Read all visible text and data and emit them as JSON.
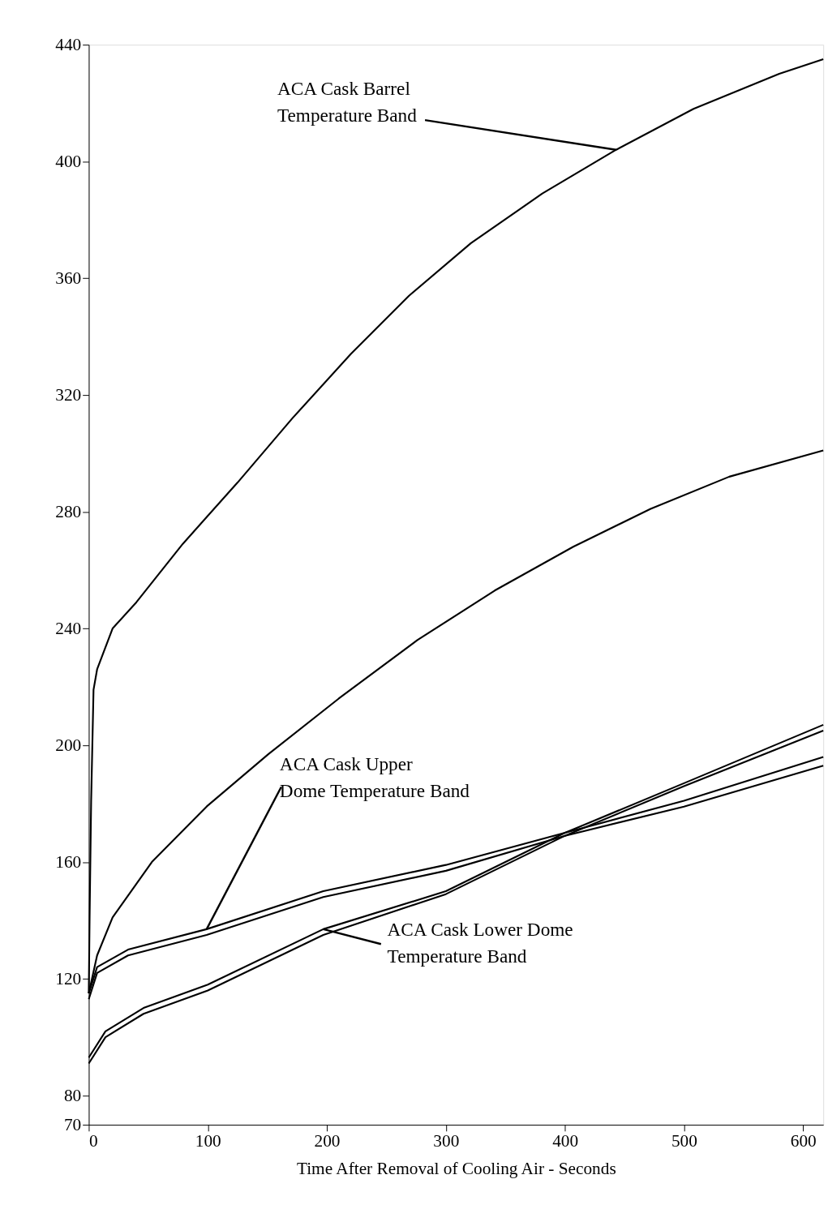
{
  "chart_data": {
    "type": "line",
    "xlabel": "Time After Removal of Cooling Air - Seconds",
    "xlim": [
      0,
      617
    ],
    "ylim": [
      70,
      440
    ],
    "xticks": [
      0,
      100,
      200,
      300,
      400,
      500,
      600
    ],
    "yticks": [
      70,
      80,
      120,
      160,
      200,
      240,
      280,
      320,
      360,
      400,
      440
    ],
    "grid": false,
    "marker": "none",
    "line_style": "solid",
    "series": [
      {
        "color": "#000000",
        "x": [
          0,
          0.7,
          2,
          4,
          7,
          20,
          40,
          79,
          125,
          171,
          220,
          269,
          321,
          381,
          443,
          508,
          580,
          617
        ],
        "values": [
          115,
          141,
          181,
          219,
          226,
          240,
          249,
          269,
          290,
          312,
          334,
          354,
          372,
          389,
          404,
          418,
          430,
          435
        ]
      },
      {
        "color": "#000000",
        "x": [
          0,
          7,
          20,
          53,
          99,
          151,
          210,
          276,
          341,
          407,
          472,
          538,
          617
        ],
        "values": [
          115,
          128,
          141,
          160,
          179,
          197,
          216,
          236,
          253,
          268,
          281,
          292,
          301
        ]
      },
      {
        "color": "#000000",
        "x": [
          0,
          7,
          33,
          99,
          197,
          300,
          400,
          500,
          617
        ],
        "values": [
          115,
          124,
          130,
          137,
          150,
          159,
          170,
          181,
          196
        ]
      },
      {
        "color": "#000000",
        "x": [
          0,
          7,
          33,
          99,
          197,
          300,
          400,
          500,
          617
        ],
        "values": [
          113,
          122,
          128,
          135,
          148,
          157,
          169,
          179,
          193
        ]
      },
      {
        "color": "#000000",
        "x": [
          0,
          14,
          46,
          100,
          197,
          300,
          400,
          500,
          617
        ],
        "values": [
          93,
          102,
          110,
          118,
          137,
          150,
          170,
          187,
          207
        ]
      },
      {
        "color": "#000000",
        "x": [
          0,
          14,
          46,
          100,
          197,
          300,
          400,
          500,
          617
        ],
        "values": [
          91,
          100,
          108,
          116,
          135,
          149,
          169,
          186,
          205
        ]
      }
    ],
    "annotations": [
      {
        "text": "ACA Cask Barrel\nTemperature Band",
        "x": 443,
        "y": 404
      },
      {
        "text": "ACA Cask Upper\nDome Temperature Band",
        "x": 99,
        "y": 137
      },
      {
        "text": "ACA Cask Lower Dome\nTemperature Band",
        "x": 197,
        "y": 137
      }
    ]
  }
}
